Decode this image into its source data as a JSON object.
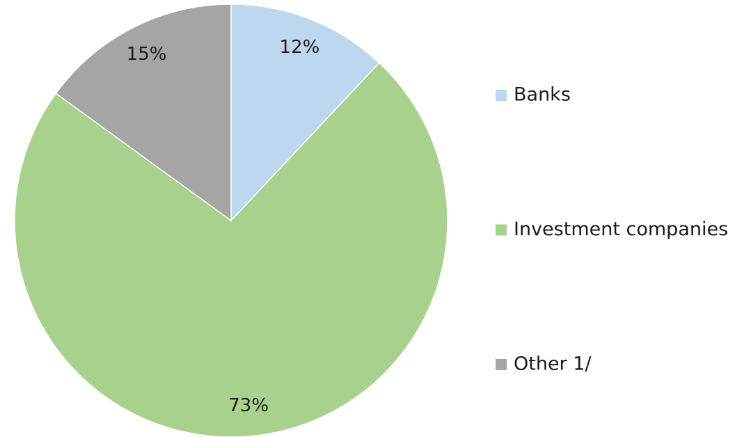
{
  "chart_data": {
    "type": "pie",
    "categories": [
      "Banks",
      "Investment companies",
      "Other 1/"
    ],
    "values": [
      12,
      73,
      15
    ],
    "value_labels": [
      "12%",
      "73%",
      "15%"
    ],
    "colors": [
      "#bdd7ee",
      "#a9d18e",
      "#a5a5a5"
    ],
    "legend": "right"
  }
}
